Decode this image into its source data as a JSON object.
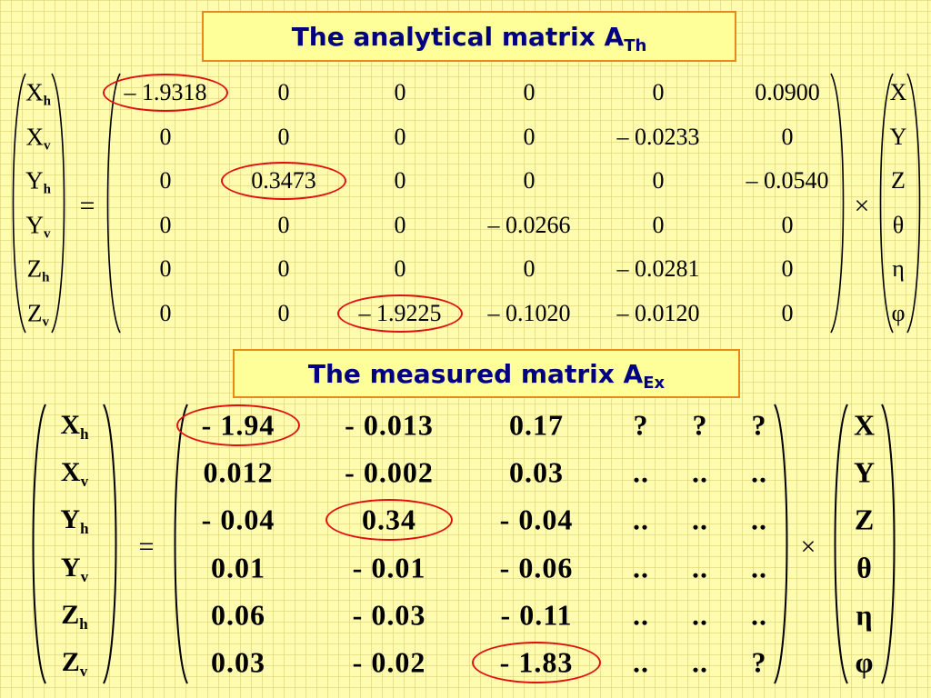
{
  "slide": {
    "analytical_title": "The analytical matrix A",
    "analytical_title_sub": "Th",
    "measured_title": "The measured matrix A",
    "measured_title_sub": "Ex"
  },
  "analytical": {
    "lhs": [
      {
        "base": "X",
        "sub": "h"
      },
      {
        "base": "X",
        "sub": "v"
      },
      {
        "base": "Y",
        "sub": "h"
      },
      {
        "base": "Y",
        "sub": "v"
      },
      {
        "base": "Z",
        "sub": "h"
      },
      {
        "base": "Z",
        "sub": "v"
      }
    ],
    "equals": "=",
    "times": "×",
    "rows": [
      [
        "– 1.9318",
        "0",
        "0",
        "0",
        "0",
        "0.0900"
      ],
      [
        "0",
        "0",
        "0",
        "0",
        "– 0.0233",
        "0"
      ],
      [
        "0",
        "0.3473",
        "0",
        "0",
        "0",
        "– 0.0540"
      ],
      [
        "0",
        "0",
        "0",
        "– 0.0266",
        "0",
        "0"
      ],
      [
        "0",
        "0",
        "0",
        "0",
        "– 0.0281",
        "0"
      ],
      [
        "0",
        "0",
        "– 1.9225",
        "– 0.1020",
        "– 0.0120",
        "0"
      ]
    ],
    "rhs": [
      "X",
      "Y",
      "Z",
      "θ",
      "η",
      "φ"
    ]
  },
  "measured": {
    "lhs": [
      {
        "base": "X",
        "sub": "h"
      },
      {
        "base": "X",
        "sub": "v"
      },
      {
        "base": "Y",
        "sub": "h"
      },
      {
        "base": "Y",
        "sub": "v"
      },
      {
        "base": "Z",
        "sub": "h"
      },
      {
        "base": "Z",
        "sub": "v"
      }
    ],
    "equals": "=",
    "times": "×",
    "rows": [
      [
        "- 1.94",
        "- 0.013",
        "0.17",
        "?",
        "?",
        "?"
      ],
      [
        "0.012",
        "- 0.002",
        "0.03",
        "..",
        "..",
        ".."
      ],
      [
        "- 0.04",
        "0.34",
        "- 0.04",
        "..",
        "..",
        ".."
      ],
      [
        "0.01",
        "- 0.01",
        "- 0.06",
        "..",
        "..",
        ".."
      ],
      [
        "0.06",
        "- 0.03",
        "- 0.11",
        "..",
        "..",
        ".."
      ],
      [
        "0.03",
        "- 0.02",
        "- 1.83",
        "..",
        "..",
        "?"
      ]
    ],
    "rhs": [
      "X",
      "Y",
      "Z",
      "θ",
      "η",
      "φ"
    ]
  }
}
